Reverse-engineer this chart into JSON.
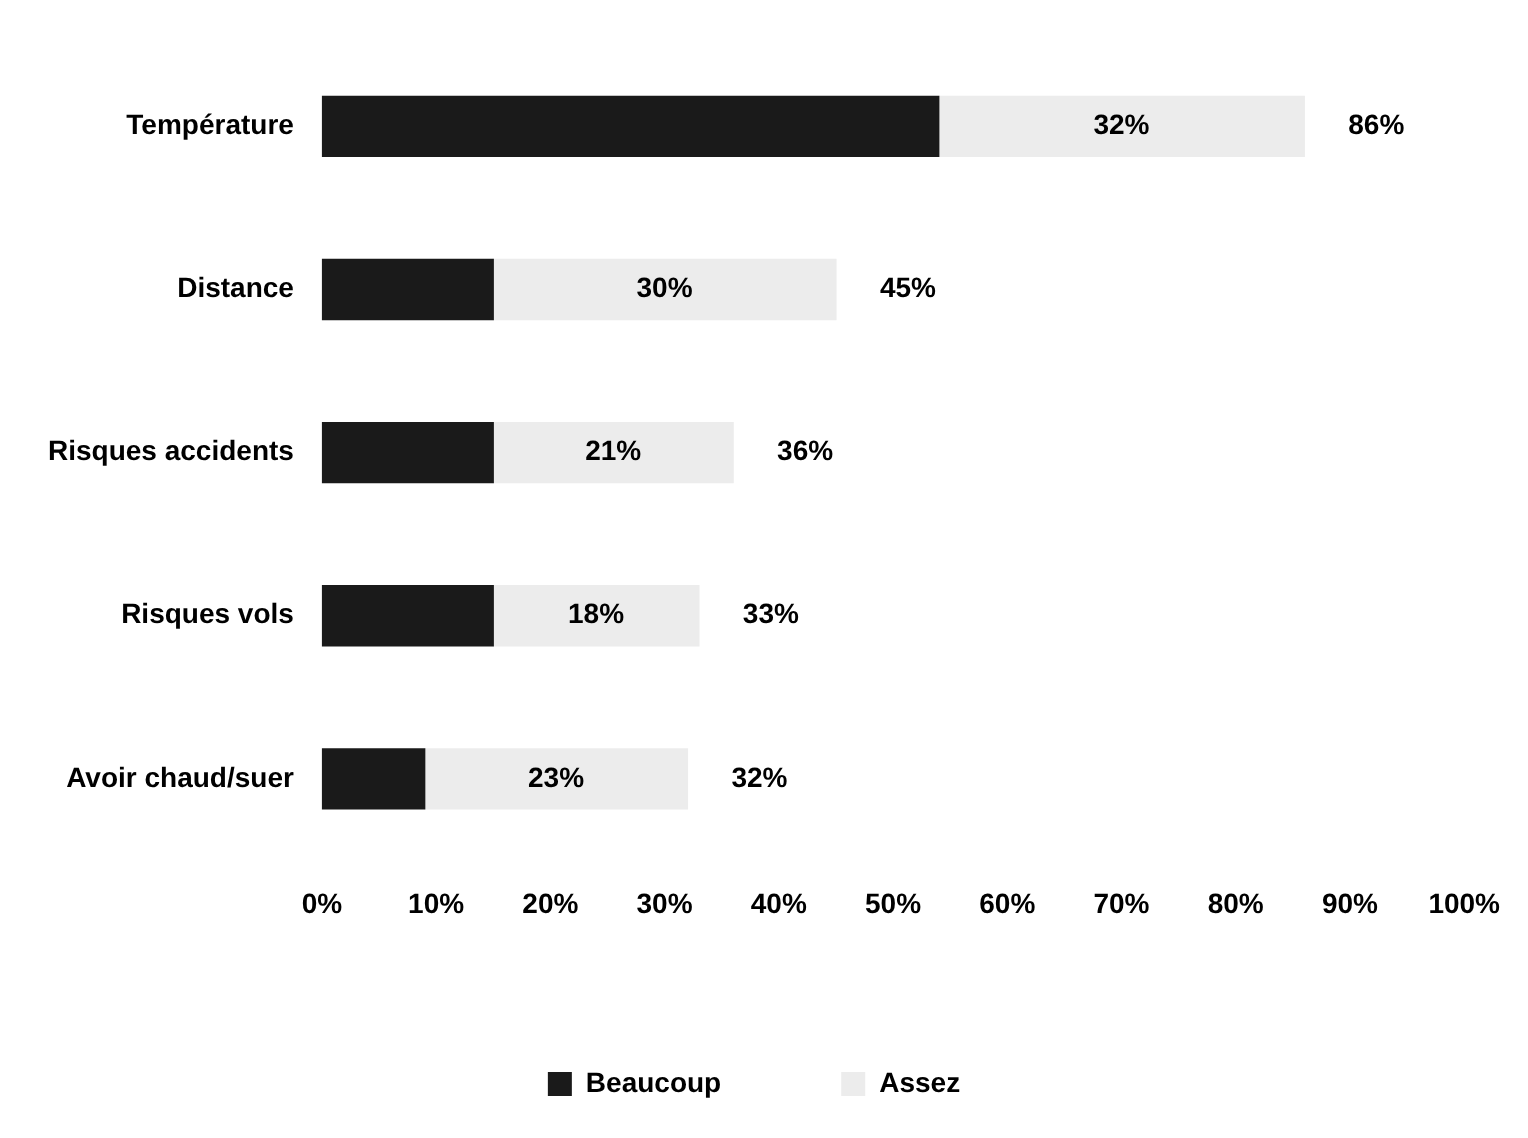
{
  "chart_data": {
    "type": "bar",
    "orientation": "horizontal",
    "stacked": true,
    "categories": [
      "Température",
      "Distance",
      "Risques accidents",
      "Risques vols",
      "Avoir chaud/suer"
    ],
    "series": [
      {
        "name": "Beaucoup",
        "color": "#1a1a1a",
        "values": [
          54,
          15,
          15,
          15,
          9
        ]
      },
      {
        "name": "Assez",
        "color": "#ececec",
        "values": [
          32,
          30,
          21,
          18,
          23
        ],
        "value_labels": [
          "32%",
          "30%",
          "21%",
          "18%",
          "23%"
        ]
      }
    ],
    "totals": [
      "86%",
      "45%",
      "36%",
      "33%",
      "32%"
    ],
    "xlim": [
      0,
      100
    ],
    "xticks": [
      {
        "value": 0,
        "label": "0%"
      },
      {
        "value": 10,
        "label": "10%"
      },
      {
        "value": 20,
        "label": "20%"
      },
      {
        "value": 30,
        "label": "30%"
      },
      {
        "value": 40,
        "label": "40%"
      },
      {
        "value": 50,
        "label": "50%"
      },
      {
        "value": 60,
        "label": "60%"
      },
      {
        "value": 70,
        "label": "70%"
      },
      {
        "value": 80,
        "label": "80%"
      },
      {
        "value": 90,
        "label": "90%"
      },
      {
        "value": 100,
        "label": "100%"
      }
    ],
    "grid": false,
    "legend": "bottom"
  }
}
